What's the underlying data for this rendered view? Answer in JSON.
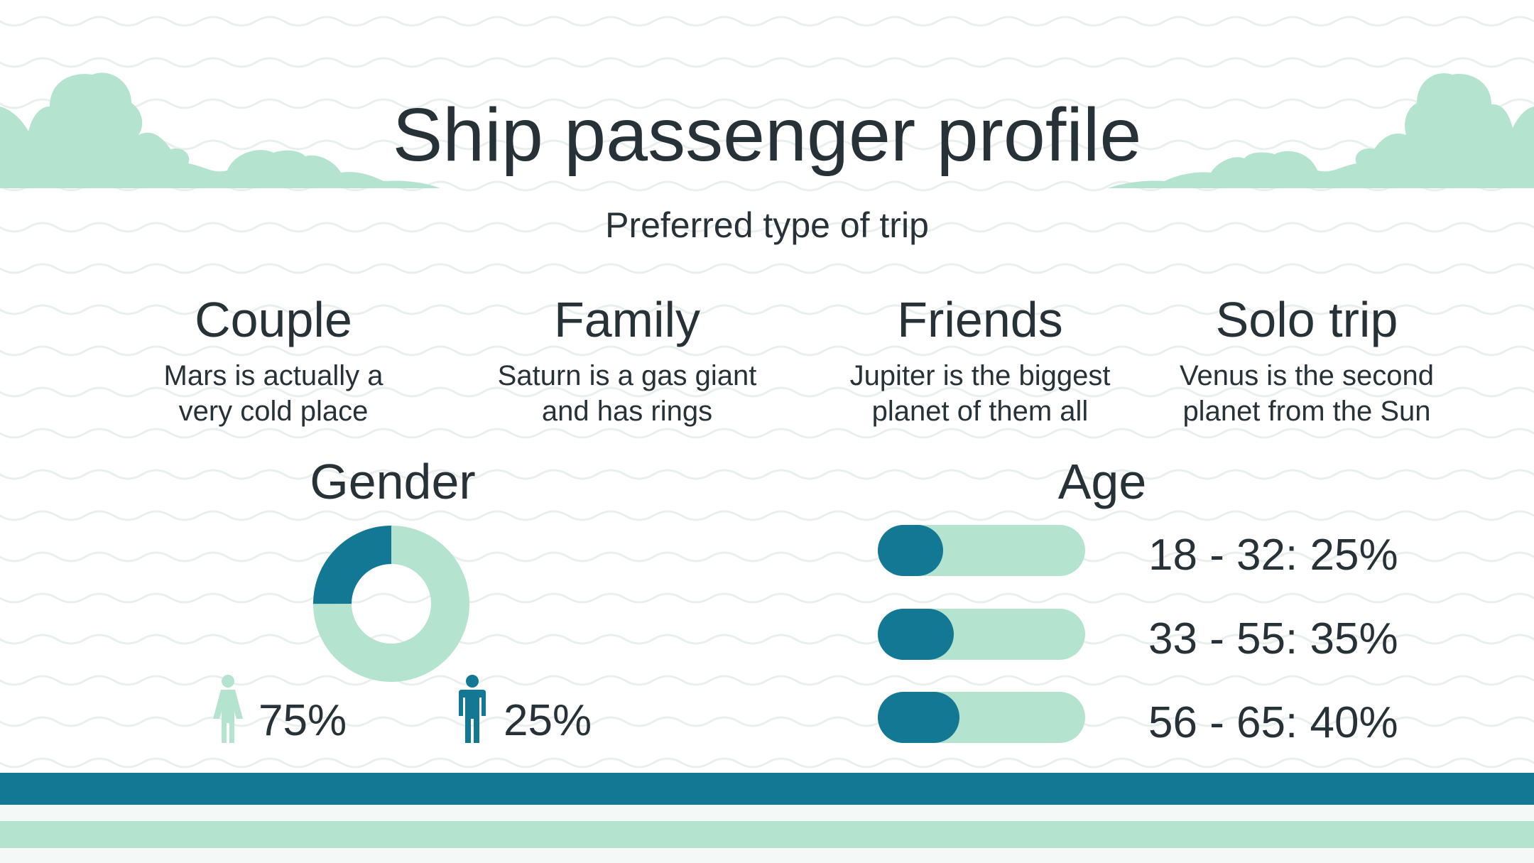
{
  "title": "Ship passenger profile",
  "subtitle": "Preferred type of trip",
  "trip_types": [
    {
      "name": "Couple",
      "desc_line1": "Mars is actually a",
      "desc_line2": "very cold place"
    },
    {
      "name": "Family",
      "desc_line1": "Saturn is a gas giant",
      "desc_line2": "and has rings"
    },
    {
      "name": "Friends",
      "desc_line1": "Jupiter is the biggest",
      "desc_line2": "planet of them all"
    },
    {
      "name": "Solo trip",
      "desc_line1": "Venus is the second",
      "desc_line2": "planet from the Sun"
    }
  ],
  "gender": {
    "title": "Gender",
    "female": {
      "value": 75,
      "label": "75%",
      "icon": "female-person-icon"
    },
    "male": {
      "value": 25,
      "label": "25%",
      "icon": "male-person-icon"
    }
  },
  "age": {
    "title": "Age",
    "groups": [
      {
        "label": "18 - 32: 25%",
        "value": 25
      },
      {
        "label": "33 - 55: 35%",
        "value": 35
      },
      {
        "label": "56 - 65: 40%",
        "value": 40
      }
    ]
  },
  "colors": {
    "accent_dark": "#137894",
    "accent_light": "#b4e3cf",
    "text": "#263238",
    "wave": "#e9efed"
  }
}
